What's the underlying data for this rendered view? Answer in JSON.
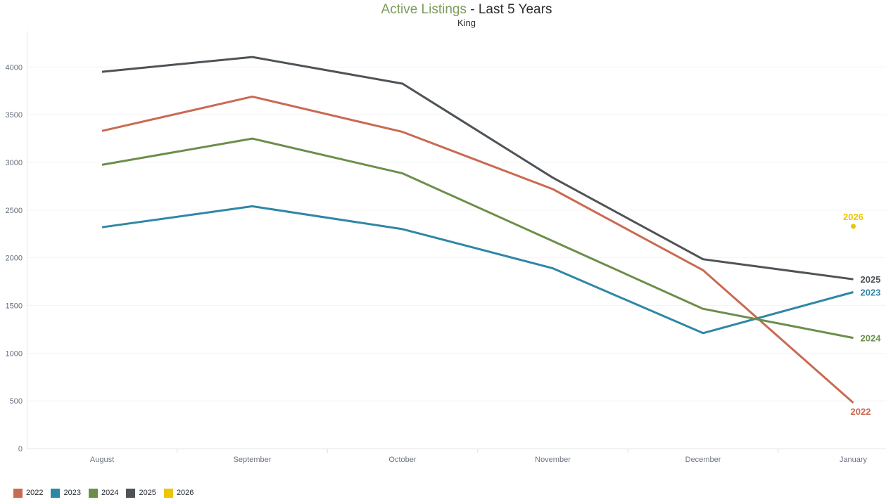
{
  "header": {
    "title_highlight": "Active Listings",
    "title_rest": " - Last 5 Years",
    "subtitle": "King"
  },
  "chart_data": {
    "type": "line",
    "title": "Active Listings - Last 5 Years",
    "subtitle": "King",
    "categories": [
      "August",
      "September",
      "October",
      "November",
      "December",
      "January"
    ],
    "series": [
      {
        "name": "2022",
        "color": "#c96a52",
        "values": [
          3330,
          3690,
          3320,
          2720,
          1870,
          480
        ],
        "end_label": "2022",
        "label_position": "below"
      },
      {
        "name": "2023",
        "color": "#2f87a6",
        "values": [
          2320,
          2540,
          2300,
          1890,
          1210,
          1640
        ],
        "end_label": "2023",
        "label_position": "right"
      },
      {
        "name": "2024",
        "color": "#6d8e4b",
        "values": [
          2975,
          3250,
          2885,
          2175,
          1465,
          1160
        ],
        "end_label": "2024",
        "label_position": "right"
      },
      {
        "name": "2025",
        "color": "#4e5357",
        "values": [
          3950,
          4105,
          3825,
          2840,
          1985,
          1775
        ],
        "end_label": "2025",
        "label_position": "right"
      },
      {
        "name": "2026",
        "color": "#ecc503",
        "values": [
          null,
          null,
          null,
          null,
          null,
          2330
        ],
        "end_label": "2026",
        "label_position": "above"
      }
    ],
    "xlabel": "",
    "ylabel": "",
    "yticks": [
      0,
      500,
      1000,
      1500,
      2000,
      2500,
      3000,
      3500,
      4000
    ],
    "ylim": [
      0,
      4400
    ],
    "grid": "horizontal-only",
    "legend_position": "bottom-left",
    "legend_labels": [
      "2022",
      "2023",
      "2024",
      "2025",
      "2026"
    ]
  }
}
